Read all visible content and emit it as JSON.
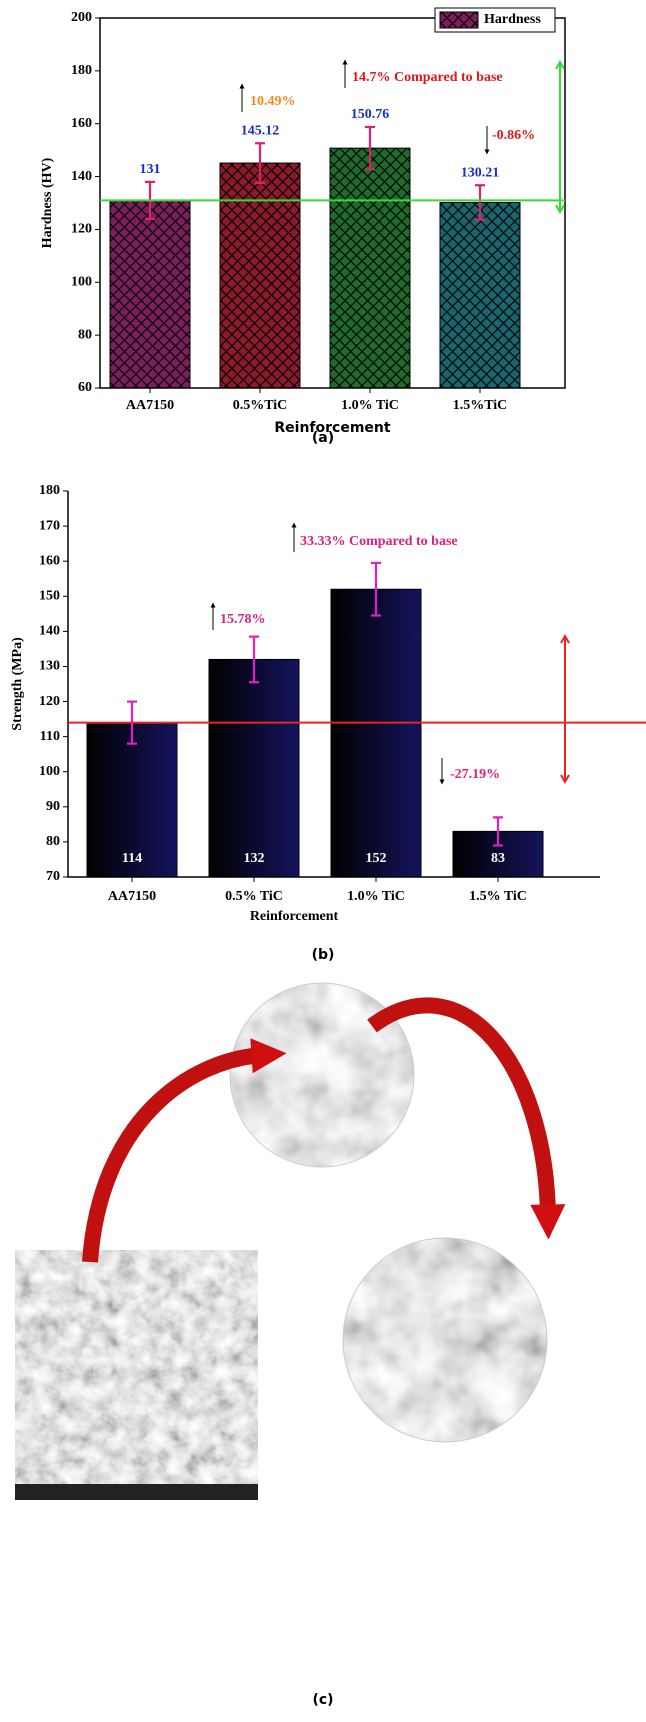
{
  "chart_data": [
    {
      "type": "bar",
      "y_label": "Hardness (HV)",
      "x_label": "Reinforcement",
      "categories": [
        "AA7150",
        "0.5%TiC",
        "1.0% TiC",
        "1.5%TiC"
      ],
      "series": [
        {
          "name": "Hardness",
          "colors": [
            "#7a1f5c",
            "#8a1a2c",
            "#1f6b2c",
            "#1a666e"
          ],
          "values": [
            131,
            145.12,
            150.76,
            130.21
          ],
          "errors": [
            7,
            7.5,
            8,
            6.5
          ]
        }
      ],
      "ylim": [
        60,
        200
      ],
      "yticks": [
        60,
        80,
        100,
        120,
        140,
        160,
        180,
        200
      ],
      "reference_line": 131,
      "reference_color": "#33dd33",
      "annotations": [
        "10.49%",
        "14.7% Compared to base",
        "-0.86%"
      ],
      "caption": "(a)"
    },
    {
      "type": "bar",
      "y_label": "Strength (MPa)",
      "x_label": "Reinforcement",
      "categories": [
        "AA7150",
        "0.5% TiC",
        "1.0% TiC",
        "1.5% TiC"
      ],
      "series": [
        {
          "colors": [
            "#14145e",
            "#14145e",
            "#14145e",
            "#14145e"
          ],
          "values": [
            114,
            132,
            152,
            83
          ],
          "errors": [
            6,
            6.5,
            7.5,
            4
          ]
        }
      ],
      "ylim": [
        70,
        180
      ],
      "yticks": [
        70,
        80,
        90,
        100,
        110,
        120,
        130,
        140,
        150,
        160,
        170,
        180
      ],
      "reference_line": 114,
      "reference_color": "#ee2222",
      "annotations": [
        "15.78%",
        "33.33% Compared to base",
        "-27.19%"
      ],
      "caption": "(b)"
    }
  ],
  "figure_c": {
    "caption": "(c)"
  }
}
